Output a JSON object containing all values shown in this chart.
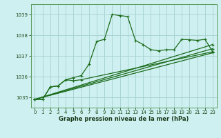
{
  "title": "Graphe pression niveau de la mer (hPa)",
  "background_color": "#cff0f0",
  "grid_color": "#aad4d4",
  "line_color": "#1a6b1a",
  "xlim": [
    -0.5,
    23.5
  ],
  "ylim": [
    1034.5,
    1039.5
  ],
  "yticks": [
    1035,
    1036,
    1037,
    1038,
    1039
  ],
  "xticks": [
    0,
    1,
    2,
    3,
    4,
    5,
    6,
    7,
    8,
    9,
    10,
    11,
    12,
    13,
    14,
    15,
    16,
    17,
    18,
    19,
    20,
    21,
    22,
    23
  ],
  "line1_x": [
    0,
    1,
    2,
    3,
    4,
    5,
    6,
    7,
    8,
    9,
    10,
    11,
    12,
    13,
    14,
    15,
    16,
    17,
    18,
    19,
    20,
    21,
    22,
    23
  ],
  "line1_y": [
    1034.9,
    1034.9,
    1035.5,
    1035.55,
    1035.85,
    1035.95,
    1036.05,
    1036.6,
    1037.7,
    1037.8,
    1039.0,
    1038.95,
    1038.9,
    1037.75,
    1037.55,
    1037.3,
    1037.25,
    1037.3,
    1037.3,
    1037.8,
    1037.78,
    1037.75,
    1037.8,
    1037.2
  ],
  "line2_x": [
    0,
    1,
    2,
    3,
    4,
    5,
    6,
    23
  ],
  "line2_y": [
    1034.9,
    1034.9,
    1035.5,
    1035.55,
    1035.85,
    1035.8,
    1035.85,
    1037.2
  ],
  "line3_x": [
    0,
    23
  ],
  "line3_y": [
    1034.9,
    1037.15
  ],
  "line4_x": [
    0,
    23
  ],
  "line4_y": [
    1034.9,
    1037.35
  ],
  "line5_x": [
    0,
    23
  ],
  "line5_y": [
    1034.9,
    1037.55
  ]
}
